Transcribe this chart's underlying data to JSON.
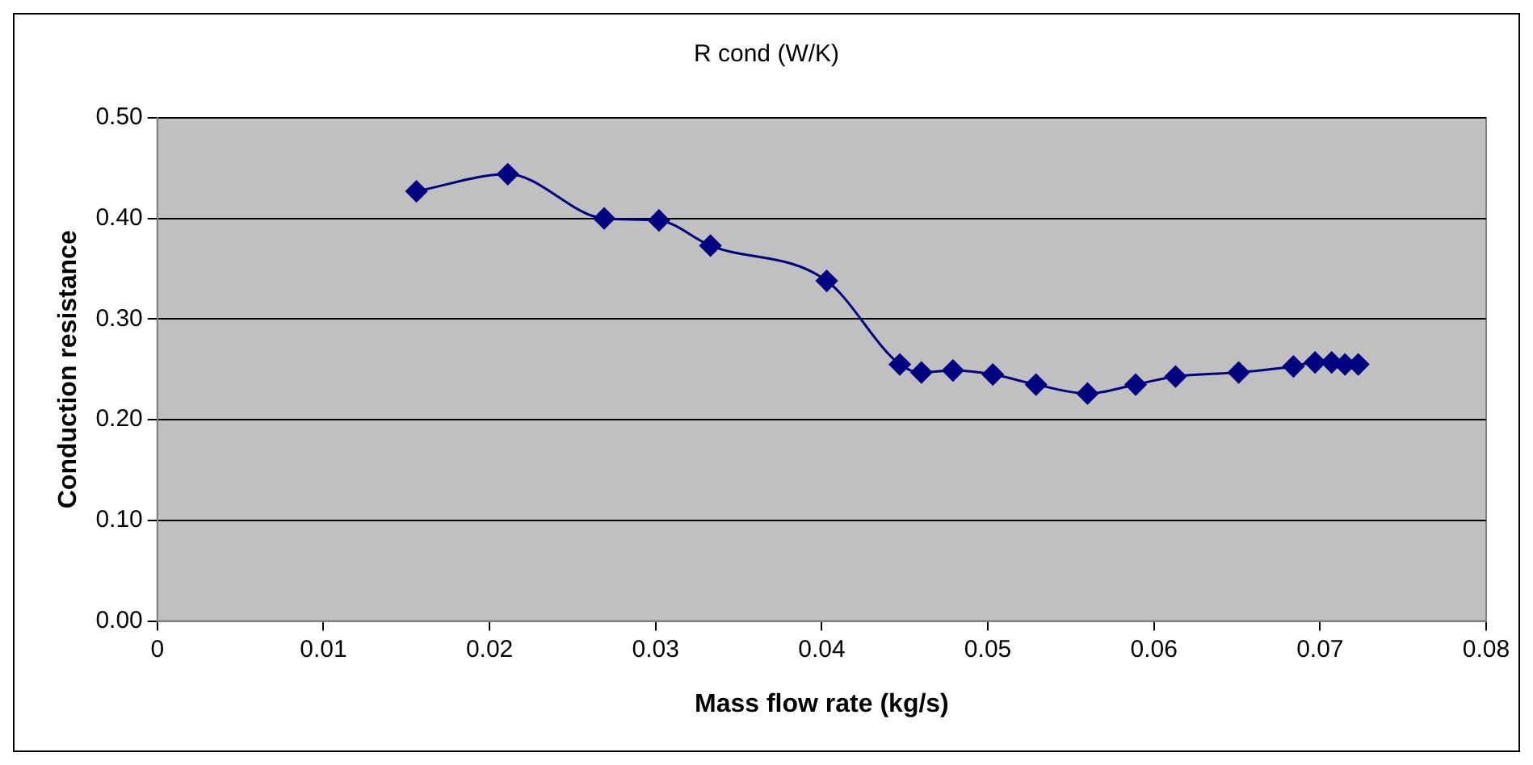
{
  "chart_data": {
    "type": "line",
    "title": "R cond (W/K)",
    "xlabel": "Mass flow rate (kg/s)",
    "ylabel": "Conduction resistance",
    "x": [
      0.0156,
      0.0211,
      0.0269,
      0.0302,
      0.0333,
      0.0403,
      0.0447,
      0.046,
      0.0479,
      0.0503,
      0.0529,
      0.056,
      0.0589,
      0.0613,
      0.0651,
      0.0684,
      0.0697,
      0.0707,
      0.0715,
      0.0723
    ],
    "series": [
      {
        "color": "#000080",
        "values": [
          0.427,
          0.444,
          0.4,
          0.398,
          0.373,
          0.338,
          0.255,
          0.247,
          0.249,
          0.245,
          0.235,
          0.226,
          0.235,
          0.243,
          0.247,
          0.253,
          0.257,
          0.257,
          0.255,
          0.255
        ]
      }
    ],
    "xlim": [
      0,
      0.08
    ],
    "xticks": [
      0,
      0.01,
      0.02,
      0.03,
      0.04,
      0.05,
      0.06,
      0.07,
      0.08
    ],
    "ylim": [
      0,
      0.5
    ],
    "yticks": [
      {
        "value": 0,
        "label": "0.00"
      },
      {
        "value": 0.1,
        "label": "0.10"
      },
      {
        "value": 0.2,
        "label": "0.20"
      },
      {
        "value": 0.3,
        "label": "0.30"
      },
      {
        "value": 0.4,
        "label": "0.40"
      },
      {
        "value": 0.5,
        "label": "0.50"
      }
    ],
    "grid": "y",
    "legend": false,
    "marker": "diamond",
    "line_style": "solid"
  }
}
